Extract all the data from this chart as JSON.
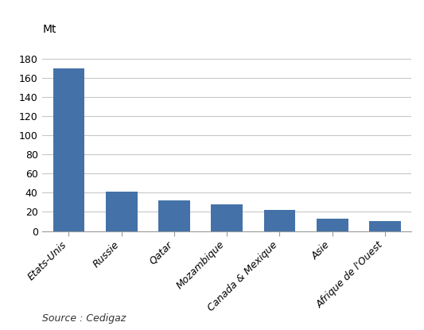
{
  "categories": [
    "Etats-Unis",
    "Russie",
    "Qatar",
    "Mozambique",
    "Canada & Mexique",
    "Asie",
    "Afrique de l'Ouest"
  ],
  "values": [
    170,
    41,
    32,
    28,
    22,
    13,
    10
  ],
  "bar_color": "#4472a8",
  "ylabel": "Mt",
  "ylim": [
    0,
    200
  ],
  "yticks": [
    0,
    20,
    40,
    60,
    80,
    100,
    120,
    140,
    160,
    180
  ],
  "source_text": "Source : Cedigaz",
  "background_color": "#ffffff",
  "grid_color": "#c8c8c8",
  "ylabel_fontsize": 10,
  "tick_fontsize": 9,
  "source_fontsize": 9
}
